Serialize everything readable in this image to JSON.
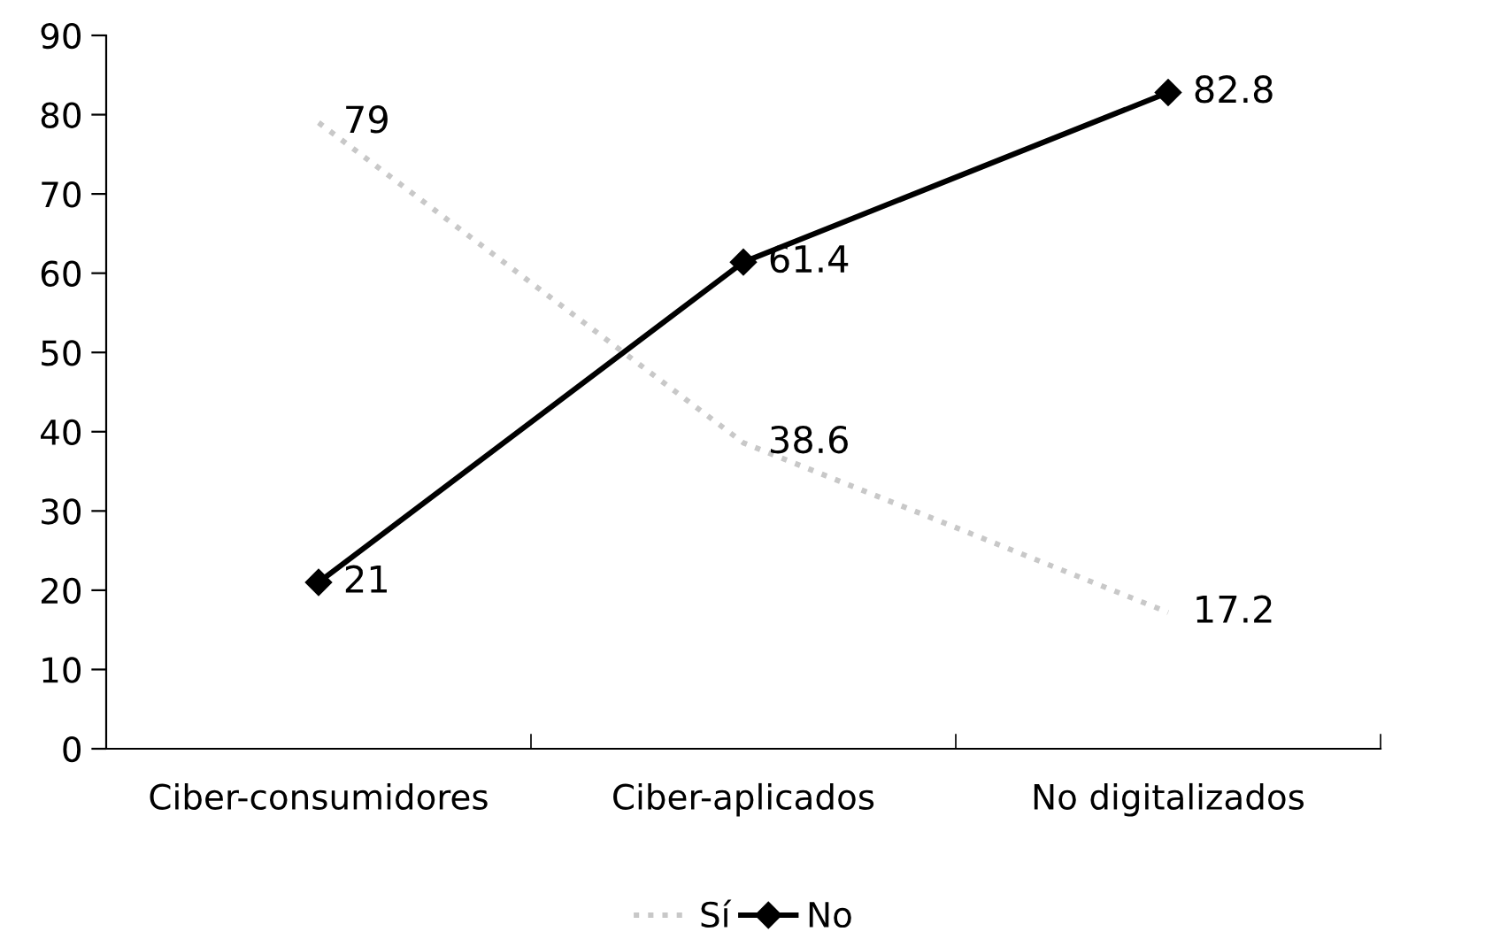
{
  "chart_data": {
    "type": "line",
    "categories": [
      "Ciber-consumidores",
      "Ciber-aplicados",
      "No digitalizados"
    ],
    "series": [
      {
        "name": "Sí",
        "color": "#c8c8c8",
        "values": [
          79,
          38.6,
          17.2
        ],
        "marker": "none",
        "line_style": "dotted"
      },
      {
        "name": "No",
        "color": "#000000",
        "values": [
          21,
          61.4,
          82.8
        ],
        "marker": "diamond",
        "line_style": "solid"
      }
    ],
    "ylim": [
      0,
      90
    ],
    "yticks": [
      0,
      10,
      20,
      30,
      40,
      50,
      60,
      70,
      80,
      90
    ],
    "data_labels": true,
    "grid": false,
    "legend": "bottom"
  }
}
